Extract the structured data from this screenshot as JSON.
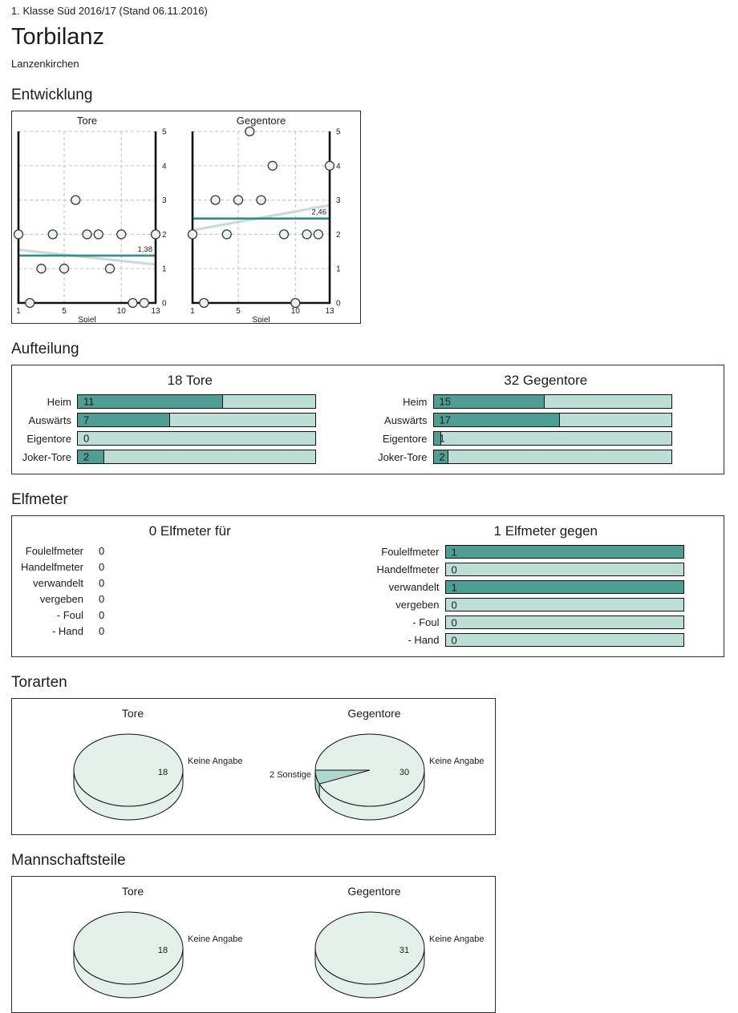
{
  "header": {
    "league": "1. Klasse Süd 2016/17 (Stand 06.11.2016)",
    "title": "Torbilanz",
    "team": "Lanzenkirchen"
  },
  "headings": {
    "entwicklung": "Entwicklung",
    "aufteilung": "Aufteilung",
    "elfmeter": "Elfmeter",
    "torarten": "Torarten",
    "mannschaftsteile": "Mannschaftsteile"
  },
  "colors": {
    "bar_fill": "#4f9d93",
    "bar_track": "#bcded7",
    "avg_line": "#2f8e85",
    "trend_line": "#cbdad7",
    "point_fill": "#e9f2ee",
    "point_stroke": "#3a3a3a",
    "pie_main": "#e3efe9",
    "pie_alt": "#aed7cf",
    "grid": "#c9c9c9",
    "axis": "#111111",
    "text": "#1c1c1c"
  },
  "chart_data": [
    {
      "id": "scatter-tore",
      "type": "scatter",
      "title": "Tore",
      "xlabel": "Spiel",
      "x": [
        1,
        2,
        3,
        4,
        5,
        6,
        7,
        8,
        9,
        10,
        11,
        12,
        13
      ],
      "y": [
        2,
        0,
        1,
        2,
        1,
        3,
        2,
        2,
        1,
        2,
        0,
        0,
        2
      ],
      "mean": 1.38,
      "mean_label": "1,38",
      "trend": [
        1.55,
        1.12
      ],
      "xlim": [
        1,
        13
      ],
      "ylim": [
        0,
        5
      ],
      "xticks": [
        1,
        5,
        10,
        13
      ],
      "yticks": [
        0,
        1,
        2,
        3,
        4,
        5
      ],
      "grid": true
    },
    {
      "id": "scatter-gegentore",
      "type": "scatter",
      "title": "Gegentore",
      "xlabel": "Spiel",
      "x": [
        1,
        2,
        3,
        4,
        5,
        6,
        7,
        8,
        9,
        10,
        11,
        12,
        13
      ],
      "y": [
        2,
        0,
        3,
        2,
        3,
        5,
        3,
        4,
        2,
        0,
        2,
        2,
        4
      ],
      "mean": 2.46,
      "mean_label": "2,46",
      "trend": [
        2.12,
        2.85
      ],
      "xlim": [
        1,
        13
      ],
      "ylim": [
        0,
        5
      ],
      "xticks": [
        1,
        5,
        10,
        13
      ],
      "yticks": [
        0,
        1,
        2,
        3,
        4,
        5
      ],
      "grid": true
    },
    {
      "id": "bars-tore",
      "type": "bar",
      "title": "18 Tore",
      "max": 18,
      "show_tracks": true,
      "categories": [
        "Heim",
        "Auswärts",
        "Eigentore",
        "Joker-Tore"
      ],
      "values": [
        11,
        7,
        0,
        2
      ]
    },
    {
      "id": "bars-gegentore",
      "type": "bar",
      "title": "32 Gegentore",
      "max": 32,
      "show_tracks": true,
      "categories": [
        "Heim",
        "Auswärts",
        "Eigentore",
        "Joker-Tore"
      ],
      "values": [
        15,
        17,
        1,
        2
      ]
    },
    {
      "id": "bars-elfmeter-fuer",
      "type": "bar",
      "title": "0 Elfmeter für",
      "max": 1,
      "show_tracks": false,
      "categories": [
        "Foulelfmeter",
        "Handelfmeter",
        "verwandelt",
        "vergeben",
        "- Foul",
        "- Hand"
      ],
      "values": [
        0,
        0,
        0,
        0,
        0,
        0
      ]
    },
    {
      "id": "bars-elfmeter-gegen",
      "type": "bar",
      "title": "1 Elfmeter gegen",
      "max": 1,
      "show_tracks": true,
      "categories": [
        "Foulelfmeter",
        "Handelfmeter",
        "verwandelt",
        "vergeben",
        "- Foul",
        "- Hand"
      ],
      "values": [
        1,
        0,
        1,
        0,
        0,
        0
      ]
    },
    {
      "id": "pie-torarten-tore",
      "type": "pie",
      "title": "Tore",
      "total": 18,
      "slices": [
        {
          "label": "Keine Angabe",
          "value": 18,
          "value_label": "18"
        }
      ]
    },
    {
      "id": "pie-torarten-gegentore",
      "type": "pie",
      "title": "Gegentore",
      "total": 32,
      "slices": [
        {
          "label": "Keine Angabe",
          "value": 30,
          "value_label": "30"
        },
        {
          "label": "2 Sonstige",
          "value": 2
        }
      ]
    },
    {
      "id": "pie-mannschaftsteile-tore",
      "type": "pie",
      "title": "Tore",
      "total": 18,
      "slices": [
        {
          "label": "Keine Angabe",
          "value": 18,
          "value_label": "18"
        }
      ]
    },
    {
      "id": "pie-mannschaftsteile-gegentore",
      "type": "pie",
      "title": "Gegentore",
      "total": 31,
      "slices": [
        {
          "label": "Keine Angabe",
          "value": 31,
          "value_label": "31"
        }
      ]
    }
  ]
}
